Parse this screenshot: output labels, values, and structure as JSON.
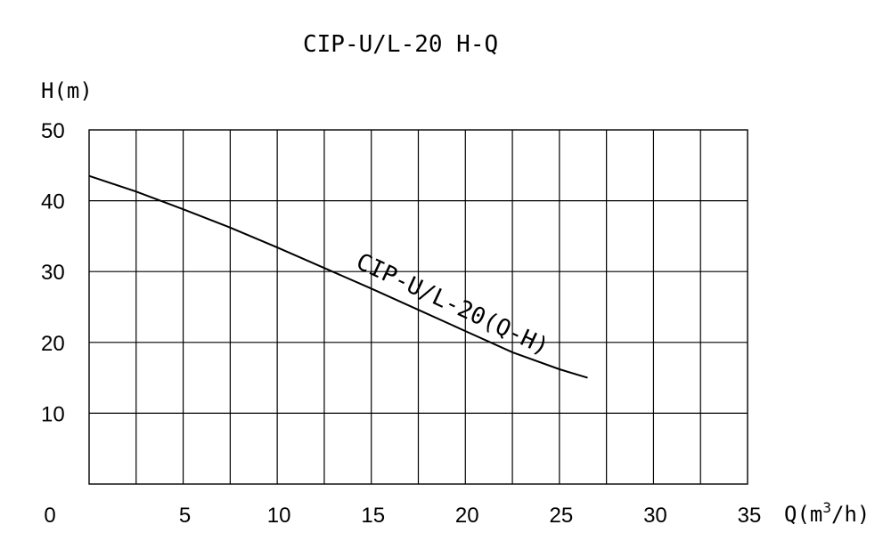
{
  "chart_data": {
    "type": "line",
    "title": "CIP-U/L-20 H-Q",
    "xlabel_main": "Q(m",
    "xlabel_sup": "3",
    "xlabel_tail": "/h)",
    "ylabel": "H(m)",
    "xlim": [
      0,
      35
    ],
    "ylim": [
      0,
      50
    ],
    "x_ticks": [
      "0",
      "5",
      "10",
      "15",
      "20",
      "25",
      "30",
      "35"
    ],
    "y_ticks": [
      "10",
      "20",
      "30",
      "40",
      "50"
    ],
    "grid": true,
    "series": [
      {
        "name": "CIP-U/L-20(Q-H)",
        "x": [
          0,
          2.5,
          5,
          7.5,
          10,
          12.5,
          15,
          17.5,
          20,
          22.5,
          25,
          26.5
        ],
        "y": [
          43.5,
          41.3,
          38.8,
          36.2,
          33.4,
          30.5,
          27.6,
          24.6,
          21.6,
          18.6,
          16.2,
          15.0
        ]
      }
    ]
  }
}
